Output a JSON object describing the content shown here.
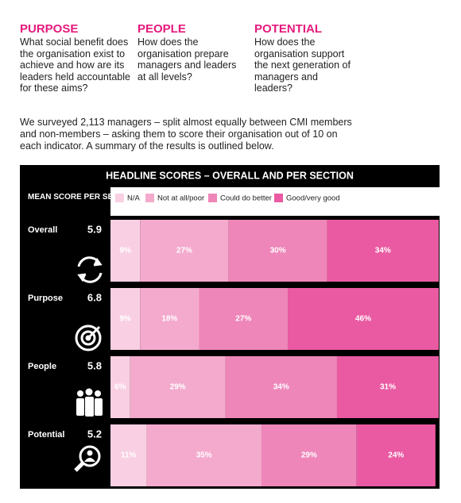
{
  "columns": [
    {
      "heading": "PURPOSE",
      "body": "What social benefit does the organisation exist to achieve and how are its leaders held accountable for these aims?"
    },
    {
      "heading": "PEOPLE",
      "body": "How does the organisation prepare managers and leaders at all levels?"
    },
    {
      "heading": "POTENTIAL",
      "body": "How does the organisation support the next generation of managers and leaders?"
    }
  ],
  "intro": "We surveyed 2,113 managers – split almost equally between CMI members and non-members – asking them to score their organisation out of 10 on each indicator. A summary of the results is outlined below.",
  "chart_data": {
    "type": "stacked-bar",
    "orientation": "horizontal",
    "title": "HEADLINE SCORES – OVERALL AND PER SECTION",
    "row_header": "MEAN SCORE PER SECTION",
    "categories": [
      "Overall",
      "Purpose",
      "People",
      "Potential"
    ],
    "row_scores": [
      5.9,
      6.8,
      5.8,
      5.2
    ],
    "xlim": [
      0,
      100
    ],
    "series": [
      {
        "name": "N/A",
        "color": "#f9d0e3",
        "values": [
          9,
          9,
          6,
          11
        ],
        "value_labels": [
          "9%",
          "9%",
          "6%",
          "11%"
        ]
      },
      {
        "name": "Not at all/poor",
        "color": "#f4aacd",
        "values": [
          27,
          18,
          29,
          35
        ],
        "value_labels": [
          "27%",
          "18%",
          "29%",
          "35%"
        ]
      },
      {
        "name": "Could do better",
        "color": "#ee86b9",
        "values": [
          30,
          27,
          34,
          29
        ],
        "value_labels": [
          "30%",
          "27%",
          "34%",
          "29%"
        ]
      },
      {
        "name": "Good/very good",
        "color": "#ea5aa2",
        "values": [
          34,
          46,
          31,
          24
        ],
        "value_labels": [
          "34%",
          "46%",
          "31%",
          "24%"
        ]
      }
    ]
  }
}
